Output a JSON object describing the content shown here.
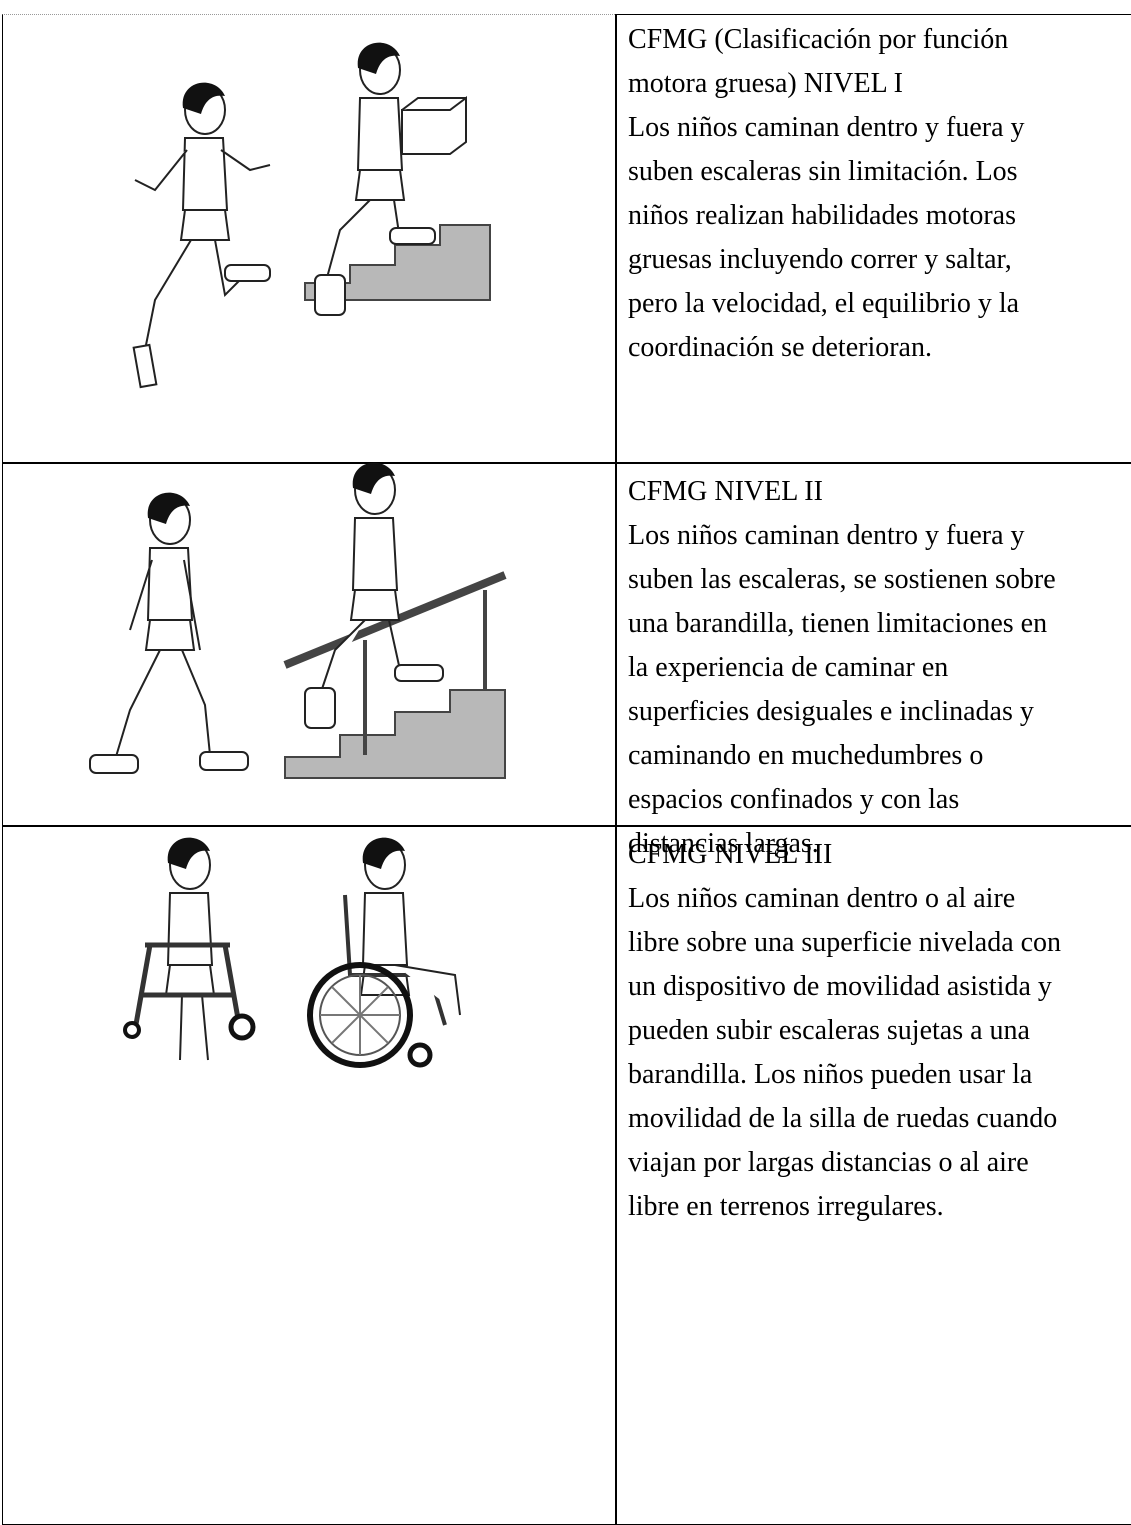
{
  "table": {
    "rows": [
      {
        "lines": [
          "CFMG (Clasificación por función",
          "motora gruesa) NIVEL I",
          "Los niños caminan dentro y fuera y",
          "suben escaleras sin limitación. Los",
          "niños realizan habilidades motoras",
          "gruesas incluyendo correr y saltar,",
          "pero la velocidad, el equilibrio y la",
          "coordinación se deterioran."
        ]
      },
      {
        "lines": [
          "CFMG NIVEL II",
          "Los niños caminan dentro y fuera y",
          "suben las escaleras, se sostienen sobre",
          "una barandilla, tienen limitaciones en",
          "la experiencia de caminar en",
          "superficies desiguales e inclinadas y",
          "caminando en muchedumbres o",
          "espacios confinados y con las",
          "distancias largas."
        ]
      },
      {
        "lines": [
          "CFMG NIVEL III",
          "Los niños caminan dentro o al aire",
          "libre sobre una superficie nivelada con",
          "un dispositivo de movilidad asistida y",
          "pueden subir escaleras sujetas a una",
          "barandilla. Los niños pueden usar la",
          "movilidad de la silla de ruedas cuando",
          "viajan por largas distancias o al aire",
          "libre en terrenos irregulares."
        ]
      }
    ]
  }
}
